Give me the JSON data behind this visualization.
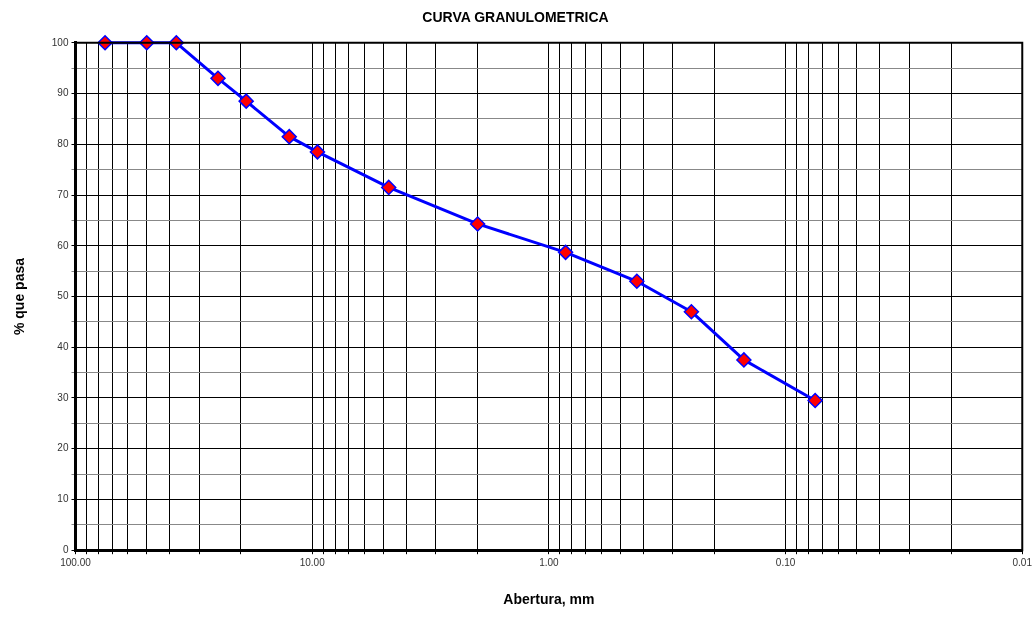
{
  "chart_data": {
    "type": "line",
    "title": "CURVA GRANULOMETRICA",
    "xlabel": "Abertura, mm",
    "ylabel": "% que pasa",
    "x": [
      75,
      50,
      37.5,
      25,
      19,
      12.5,
      9.5,
      4.75,
      2,
      0.85,
      0.425,
      0.25,
      0.15,
      0.075
    ],
    "series": [
      {
        "color": "#0000ff",
        "colors": [
          "#ff0000",
          "#ff0000",
          "#ff0000",
          "#ff0000",
          "#ff0000",
          "#ff0000",
          "#ff0000",
          "#ff0000",
          "#ff0000",
          "#ff0000",
          "#ff0000",
          "#ff0000",
          "#ff0000",
          "#ff0000"
        ],
        "values": [
          100,
          100,
          100,
          93,
          88.5,
          81.5,
          78.5,
          71.5,
          64.3,
          58.7,
          53,
          47,
          37.5,
          29.5
        ]
      }
    ],
    "log": "x",
    "xlim": [
      100,
      0.01
    ],
    "xticks": [
      {
        "value": 100,
        "label": "100.00"
      },
      {
        "value": 90,
        "label": null
      },
      {
        "value": 80,
        "label": null
      },
      {
        "value": 70,
        "label": null
      },
      {
        "value": 60,
        "label": null
      },
      {
        "value": 50,
        "label": null
      },
      {
        "value": 40,
        "label": null
      },
      {
        "value": 30,
        "label": null
      },
      {
        "value": 20,
        "label": null
      },
      {
        "value": 10,
        "label": "10.00"
      },
      {
        "value": 9,
        "label": null
      },
      {
        "value": 8,
        "label": null
      },
      {
        "value": 7,
        "label": null
      },
      {
        "value": 6,
        "label": null
      },
      {
        "value": 5,
        "label": null
      },
      {
        "value": 4,
        "label": null
      },
      {
        "value": 3,
        "label": null
      },
      {
        "value": 2,
        "label": null
      },
      {
        "value": 1,
        "label": "1.00"
      },
      {
        "value": 0.9,
        "label": null
      },
      {
        "value": 0.8,
        "label": null
      },
      {
        "value": 0.7,
        "label": null
      },
      {
        "value": 0.6,
        "label": null
      },
      {
        "value": 0.5,
        "label": null
      },
      {
        "value": 0.4,
        "label": null
      },
      {
        "value": 0.3,
        "label": null
      },
      {
        "value": 0.2,
        "label": null
      },
      {
        "value": 0.1,
        "label": "0.10"
      },
      {
        "value": 0.09,
        "label": null
      },
      {
        "value": 0.08,
        "label": null
      },
      {
        "value": 0.07,
        "label": null
      },
      {
        "value": 0.06,
        "label": null
      },
      {
        "value": 0.05,
        "label": null
      },
      {
        "value": 0.04,
        "label": null
      },
      {
        "value": 0.03,
        "label": null
      },
      {
        "value": 0.02,
        "label": null
      },
      {
        "value": 0.01,
        "label": "0.01"
      }
    ],
    "ylim": [
      0,
      100
    ],
    "yticks": [
      0,
      {
        "value": 5,
        "label": null
      },
      10,
      {
        "value": 15,
        "label": null
      },
      20,
      {
        "value": 25,
        "label": null
      },
      30,
      {
        "value": 35,
        "label": null
      },
      40,
      {
        "value": 45,
        "label": null
      },
      50,
      {
        "value": 55,
        "label": null
      },
      60,
      {
        "value": 65,
        "label": null
      },
      70,
      {
        "value": 75,
        "label": null
      },
      80,
      {
        "value": 85,
        "label": null
      },
      90,
      {
        "value": 95,
        "label": null
      },
      100
    ],
    "grid": true,
    "marker": "diamond",
    "line_style": "solid",
    "legend": false
  }
}
